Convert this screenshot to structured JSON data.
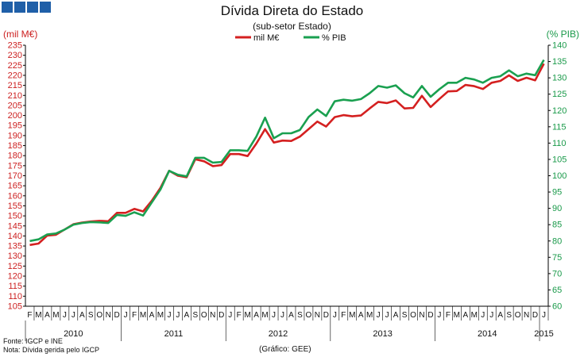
{
  "header": {
    "title": "Dívida Direta do Estado",
    "subtitle": "(sub-setor  Estado)",
    "left_unit": "(mil M€)",
    "right_unit": "(% PIB)"
  },
  "footer": {
    "source": "Fonte: IGCP e INE",
    "note": "Nota: Dívida gerida pelo IGCP",
    "credit": "(Gráfico: GEE)"
  },
  "chart_data": {
    "type": "line",
    "title": "Dívida Direta do Estado",
    "subtitle": "(sub-setor  Estado)",
    "month_labels": [
      "F",
      "M",
      "A",
      "M",
      "J",
      "J",
      "A",
      "S",
      "O",
      "N",
      "D",
      "J",
      "F",
      "M",
      "A",
      "M",
      "J",
      "J",
      "A",
      "S",
      "O",
      "N",
      "D",
      "J",
      "F",
      "M",
      "A",
      "M",
      "J",
      "J",
      "A",
      "S",
      "O",
      "N",
      "D",
      "J",
      "F",
      "M",
      "A",
      "M",
      "J",
      "J",
      "A",
      "S",
      "O",
      "N",
      "D",
      "J",
      "F",
      "M",
      "A",
      "M",
      "J",
      "J",
      "A",
      "S",
      "O",
      "N",
      "D",
      "J"
    ],
    "year_labels": [
      {
        "label": "2010",
        "start": 0,
        "end": 10
      },
      {
        "label": "2011",
        "start": 11,
        "end": 22
      },
      {
        "label": "2012",
        "start": 23,
        "end": 34
      },
      {
        "label": "2013",
        "start": 35,
        "end": 46
      },
      {
        "label": "2014",
        "start": 47,
        "end": 58
      },
      {
        "label": "2015",
        "start": 59,
        "end": 59
      }
    ],
    "y_left": {
      "label": "(mil M€)",
      "min": 105,
      "max": 235,
      "step": 5
    },
    "y_right": {
      "label": "(% PIB)",
      "min": 60,
      "max": 140,
      "step": 5
    },
    "legend": "top-center",
    "colors": {
      "debt": "#d42020",
      "pib": "#1aa050"
    },
    "series": [
      {
        "name": "mil M€",
        "axis": "left",
        "values": [
          135.5,
          136.2,
          140.2,
          140.6,
          143.2,
          145.8,
          146.7,
          147.2,
          147.5,
          147.3,
          151.5,
          151.5,
          153.5,
          152.2,
          157.5,
          164,
          172.5,
          170,
          169.2,
          178.2,
          177.2,
          174.8,
          175.3,
          180.8,
          180.8,
          179.8,
          186,
          193.2,
          186.5,
          187.5,
          187.3,
          189.5,
          193.2,
          197,
          194.5,
          199.2,
          200.2,
          199.6,
          200,
          203.5,
          206.8,
          206.2,
          207.5,
          203.5,
          203.8,
          209.8,
          204.2,
          208.2,
          212,
          212.2,
          215.2,
          214.6,
          213.2,
          216.3,
          217.2,
          220,
          217.2,
          218.8,
          217.5,
          225.8
        ]
      },
      {
        "name": "% PIB",
        "axis": "right",
        "values": [
          80,
          80.5,
          82,
          82.3,
          83.5,
          85,
          85.5,
          85.8,
          85.7,
          85.5,
          88,
          87.7,
          88.8,
          87.8,
          91.8,
          95.8,
          101.5,
          100.3,
          99.8,
          105.5,
          105.5,
          104,
          104.2,
          107.8,
          107.8,
          107.6,
          112,
          117.8,
          111.5,
          113,
          113,
          114,
          118,
          120.3,
          118.3,
          122.8,
          123.3,
          123,
          123.5,
          125.3,
          127.5,
          127,
          127.7,
          125.3,
          124,
          127.5,
          124.2,
          126.5,
          128.5,
          128.5,
          130,
          129.5,
          128.5,
          130,
          130.5,
          132.3,
          130.5,
          131.3,
          130.8,
          135.5
        ]
      }
    ]
  }
}
